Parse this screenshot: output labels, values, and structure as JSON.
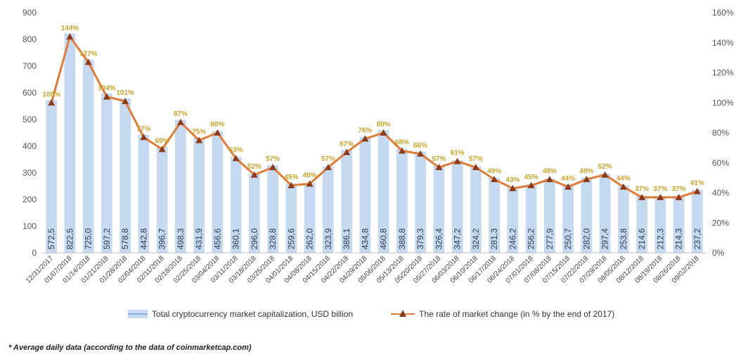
{
  "chart_data": {
    "type": "bar",
    "categories": [
      "12/31/2017",
      "01/07/2018",
      "01/14/2018",
      "01/21/2018",
      "01/28/2018",
      "02/04/2018",
      "02/11/2018",
      "02/18/2018",
      "02/25/2018",
      "03/04/2018",
      "03/11/2018",
      "03/18/2018",
      "03/25/2018",
      "04/01/2018",
      "04/08/2018",
      "04/15/2018",
      "04/22/2018",
      "04/29/2018",
      "05/06/2018",
      "05/13/2018",
      "05/20/2018",
      "05/27/2018",
      "06/03/2018",
      "06/10/2018",
      "06/17/2018",
      "06/24/2018",
      "07/01/2018",
      "07/08/2018",
      "07/15/2018",
      "07/22/2018",
      "07/29/2018",
      "08/05/2018",
      "08/12/2018",
      "08/19/2018",
      "08/26/2018",
      "09/02/2018"
    ],
    "series": [
      {
        "name": "Total cryptocurrency market capitalization, USD billion",
        "type": "bar",
        "axis": "left",
        "color": "#c5d9f1",
        "values": [
          572.5,
          822.5,
          725.0,
          597.2,
          578.8,
          442.8,
          396.7,
          498.3,
          431.9,
          456.6,
          360.1,
          296.0,
          328.8,
          259.6,
          262.0,
          323.9,
          386.1,
          434.8,
          460.8,
          388.8,
          379.3,
          326.4,
          347.2,
          324.2,
          281.3,
          246.2,
          256.2,
          277.9,
          250.7,
          282.0,
          297.4,
          253.8,
          214.6,
          212.3,
          214.3,
          237.2
        ],
        "labels": [
          "572,5",
          "822,5",
          "725,0",
          "597,2",
          "578,8",
          "442,8",
          "396,7",
          "498,3",
          "431,9",
          "456,6",
          "360,1",
          "296,0",
          "328,8",
          "259,6",
          "262,0",
          "323,9",
          "386,1",
          "434,8",
          "460,8",
          "388,8",
          "379,3",
          "326,4",
          "347,2",
          "324,2",
          "281,3",
          "246,2",
          "256,2",
          "277,9",
          "250,7",
          "282,0",
          "297,4",
          "253,8",
          "214,6",
          "212,3",
          "214,3",
          "237,2"
        ]
      },
      {
        "name": "The rate of market change (in % by the end of 2017)",
        "type": "line",
        "axis": "right",
        "color": "#e07b39",
        "marker_color": "#8b3a1a",
        "values": [
          100,
          144,
          127,
          104,
          101,
          77,
          69,
          87,
          75,
          80,
          63,
          52,
          57,
          45,
          46,
          57,
          67,
          76,
          80,
          68,
          66,
          57,
          61,
          57,
          49,
          43,
          45,
          49,
          44,
          49,
          52,
          44,
          37,
          37,
          37,
          41
        ],
        "labels": [
          "100%",
          "144%",
          "127%",
          "104%",
          "101%",
          "77%",
          "69%",
          "87%",
          "75%",
          "80%",
          "63%",
          "52%",
          "57%",
          "45%",
          "46%",
          "57%",
          "67%",
          "76%",
          "80%",
          "68%",
          "66%",
          "57%",
          "61%",
          "57%",
          "49%",
          "43%",
          "45%",
          "49%",
          "44%",
          "49%",
          "52%",
          "44%",
          "37%",
          "37%",
          "37%",
          "41%"
        ]
      }
    ],
    "ylim_left": [
      0,
      900
    ],
    "yticks_left": [
      "0",
      "100",
      "200",
      "300",
      "400",
      "500",
      "600",
      "700",
      "800",
      "900"
    ],
    "ylim_right": [
      0,
      160
    ],
    "yticks_right": [
      "0%",
      "20%",
      "40%",
      "60%",
      "80%",
      "100%",
      "120%",
      "140%",
      "160%"
    ],
    "grid": false,
    "legend_position": "bottom",
    "label_color": "#c9a227"
  },
  "legend": {
    "bar_label": "Total cryptocurrency market capitalization, USD billion",
    "line_label": "The rate of market change (in % by the end of 2017)"
  },
  "footnote": "* Average daily data (according to the data of coinmarketcap.com)"
}
